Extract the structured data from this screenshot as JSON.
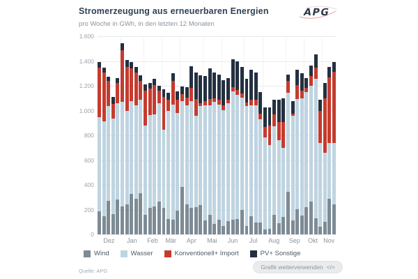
{
  "header": {
    "title": "Stromerzeugung aus erneuerbaren Energien",
    "subtitle": "pro Woche in GWh, in den letzten 12 Monaten",
    "logo_text": "APG"
  },
  "chart_data": {
    "type": "bar",
    "stacked": true,
    "unit": "GWh",
    "title": "Stromerzeugung aus erneuerbaren Energien",
    "subtitle": "pro Woche in GWh, in den letzten 12 Monaten",
    "ylim": [
      0,
      1600
    ],
    "grid": true,
    "legend_position": "bottom",
    "yticks": [
      {
        "label": "1.600",
        "value": 1600
      },
      {
        "label": "1.400",
        "value": 1400
      },
      {
        "label": "1.200",
        "value": 1200
      },
      {
        "label": "1.000",
        "value": 1000
      },
      {
        "label": "800",
        "value": 800
      },
      {
        "label": "600",
        "value": 600
      },
      {
        "label": "400",
        "value": 400
      },
      {
        "label": "200",
        "value": 200
      },
      {
        "label": "0",
        "value": 0
      }
    ],
    "months": [
      {
        "label": "Dez",
        "start_week": 0
      },
      {
        "label": "Jan",
        "start_week": 5
      },
      {
        "label": "Feb",
        "start_week": 10
      },
      {
        "label": "Mär",
        "start_week": 14
      },
      {
        "label": "Apr",
        "start_week": 18
      },
      {
        "label": "Mai",
        "start_week": 23
      },
      {
        "label": "Jun",
        "start_week": 27
      },
      {
        "label": "Jul",
        "start_week": 32
      },
      {
        "label": "Aug",
        "start_week": 36
      },
      {
        "label": "Sep",
        "start_week": 41
      },
      {
        "label": "Okt",
        "start_week": 45
      },
      {
        "label": "Nov",
        "start_week": 49
      }
    ],
    "weeks": 52,
    "series": [
      {
        "name": "Wind",
        "color": "#7d8b95",
        "values": [
          185,
          145,
          270,
          165,
          280,
          225,
          240,
          325,
          290,
          330,
          160,
          215,
          225,
          265,
          215,
          125,
          120,
          190,
          385,
          245,
          215,
          220,
          235,
          110,
          160,
          85,
          120,
          65,
          105,
          120,
          125,
          200,
          70,
          145,
          95,
          95,
          40,
          45,
          160,
          90,
          140,
          345,
          110,
          205,
          150,
          220,
          265,
          130,
          60,
          100,
          285,
          240
        ]
      },
      {
        "name": "Wasser",
        "color": "#bfd4e1",
        "values": [
          760,
          765,
          765,
          770,
          780,
          845,
          760,
          750,
          750,
          755,
          720,
          750,
          745,
          795,
          630,
          875,
          930,
          790,
          690,
          795,
          860,
          740,
          800,
          930,
          880,
          985,
          930,
          940,
          955,
          1035,
          1000,
          905,
          965,
          900,
          950,
          835,
          745,
          675,
          715,
          670,
          560,
          800,
          850,
          890,
          950,
          930,
          935,
          1125,
          680,
          560,
          455,
          500
        ]
      },
      {
        "name": "Konventionell+ Import",
        "color": "#c53b2e",
        "values": [
          400,
          395,
          205,
          120,
          165,
          420,
          355,
          265,
          265,
          155,
          280,
          210,
          235,
          100,
          265,
          85,
          190,
          105,
          60,
          65,
          110,
          135,
          25,
          35,
          55,
          30,
          40,
          35,
          30,
          35,
          40,
          35,
          30,
          40,
          40,
          45,
          85,
          160,
          95,
          145,
          205,
          95,
          15,
          110,
          60,
          35,
          80,
          90,
          260,
          440,
          530,
          570
        ]
      },
      {
        "name": "PV+ Sonstige",
        "color": "#233041",
        "values": [
          45,
          40,
          35,
          55,
          35,
          55,
          55,
          50,
          50,
          45,
          50,
          50,
          50,
          40,
          60,
          60,
          60,
          70,
          60,
          85,
          175,
          215,
          225,
          205,
          245,
          210,
          200,
          205,
          175,
          225,
          235,
          210,
          190,
          245,
          220,
          175,
          155,
          145,
          115,
          180,
          195,
          50,
          100,
          125,
          140,
          80,
          85,
          110,
          85,
          125,
          85,
          80
        ]
      }
    ]
  },
  "footer": {
    "source": "Quelle: APG",
    "button_label": "Grafik weiterverwenden",
    "button_icon": "</>"
  }
}
